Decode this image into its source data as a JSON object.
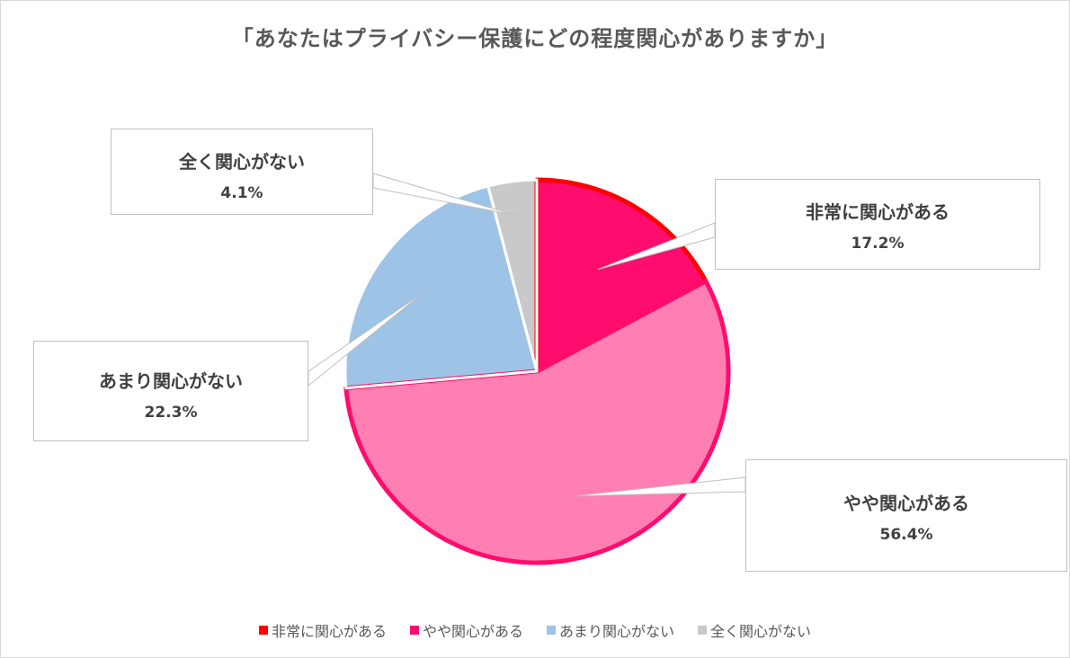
{
  "chart_data": {
    "type": "pie",
    "title": "「あなたはプライバシー保護にどの程度関心がありますか」",
    "categories": [
      "非常に関心がある",
      "やや関心がある",
      "あまり関心がない",
      "全く関心がない"
    ],
    "values": [
      17.2,
      56.4,
      22.3,
      4.1
    ],
    "value_labels": [
      "17.2%",
      "56.4%",
      "22.3%",
      "4.1%"
    ],
    "colors": [
      "#ff0d6e",
      "#ff7fb2",
      "#9dc3e6",
      "#c9c9c9"
    ],
    "outline_colors": [
      "#ff0000",
      "#ff0d6e",
      "#ffffff",
      "#ffffff"
    ],
    "legend_colors": [
      "#ff0000",
      "#ff0d6e",
      "#9dc3e6",
      "#c9c9c9"
    ],
    "legend_position": "bottom",
    "start_angle": "top, clockwise"
  }
}
